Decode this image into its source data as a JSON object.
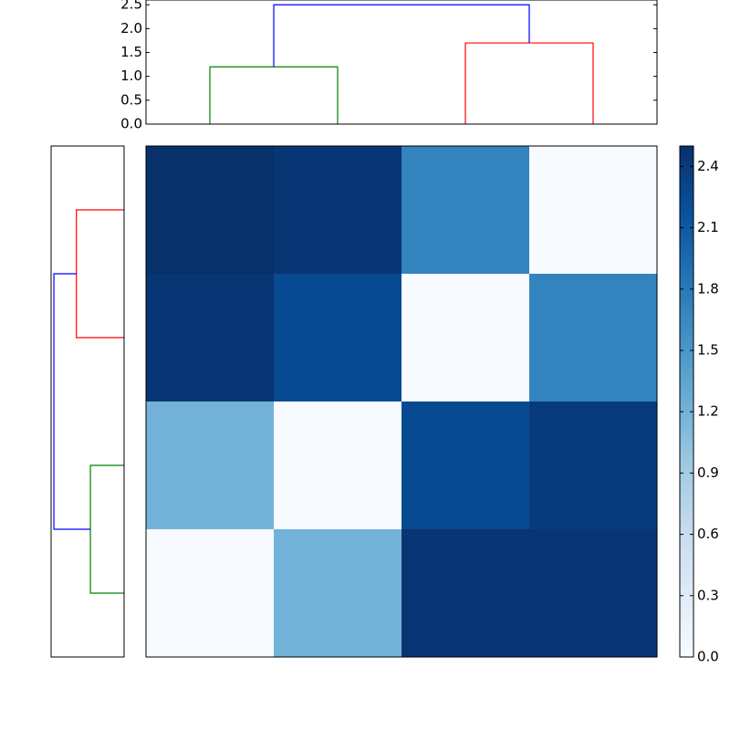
{
  "chart_data": [
    {
      "type": "dendrogram",
      "orientation": "top",
      "xlim": [
        0,
        40
      ],
      "ylim": [
        0,
        2.6
      ],
      "yticks": [
        {
          "value": 0,
          "label": "0.0"
        },
        0.5,
        {
          "value": 1,
          "label": "1.0"
        },
        1.5,
        {
          "value": 2,
          "label": "2.0"
        },
        2.5
      ],
      "links": [
        {
          "color": "#008000",
          "x": [
            5,
            5,
            15,
            15
          ],
          "y": [
            0,
            1.2,
            1.2,
            0
          ]
        },
        {
          "color": "#ff0000",
          "x": [
            25,
            25,
            35,
            35
          ],
          "y": [
            0,
            1.7,
            1.7,
            0
          ]
        },
        {
          "color": "#0000ff",
          "x": [
            10,
            10,
            30,
            30
          ],
          "y": [
            1.2,
            2.5,
            2.5,
            1.7
          ]
        }
      ]
    },
    {
      "type": "dendrogram",
      "orientation": "left",
      "xlim": [
        2.6,
        0
      ],
      "ylim": [
        0,
        40
      ],
      "links": [
        {
          "color": "#008000",
          "x": [
            0,
            1.2,
            1.2,
            0
          ],
          "y": [
            5,
            5,
            15,
            15
          ]
        },
        {
          "color": "#ff0000",
          "x": [
            0,
            1.7,
            1.7,
            0
          ],
          "y": [
            25,
            25,
            35,
            35
          ]
        },
        {
          "color": "#0000ff",
          "x": [
            1.2,
            2.5,
            2.5,
            1.7
          ],
          "y": [
            10,
            10,
            30,
            30
          ]
        }
      ]
    },
    {
      "type": "heatmap",
      "colormap": "Blues",
      "values": [
        [
          2.5,
          2.45,
          1.7,
          0
        ],
        [
          2.45,
          2.25,
          0,
          1.7
        ],
        [
          1.2,
          0,
          2.25,
          2.4
        ],
        [
          0,
          1.2,
          2.45,
          2.45
        ]
      ],
      "clim": [
        0,
        2.5
      ],
      "cticks": [
        {
          "value": 0,
          "label": "0.0"
        },
        0.3,
        0.6,
        0.9,
        1.2,
        1.5,
        1.8,
        2.1,
        2.4
      ]
    }
  ]
}
